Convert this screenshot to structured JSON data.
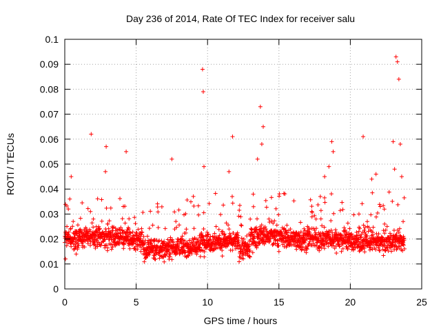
{
  "chart_data": {
    "type": "scatter",
    "title": "Day 236 of 2014, Rate Of TEC Index for receiver salu",
    "xlabel": "GPS time / hours",
    "ylabel": "ROTI / TECUs",
    "xlim": [
      0,
      25
    ],
    "ylim": [
      0,
      0.1
    ],
    "x_ticks": [
      0,
      5,
      10,
      15,
      20,
      25
    ],
    "x_tick_labels": [
      "0",
      "5",
      "10",
      "15",
      "20",
      "25"
    ],
    "y_ticks": [
      0,
      0.01,
      0.02,
      0.03,
      0.04,
      0.05,
      0.06,
      0.07,
      0.08,
      0.09,
      0.1
    ],
    "y_tick_labels": [
      "0",
      "0.01",
      "0.02",
      "0.03",
      "0.04",
      "0.05",
      "0.06",
      "0.07",
      "0.08",
      "0.09",
      "0.1"
    ],
    "grid": true,
    "marker": "+",
    "series": [
      {
        "name": "ROTI",
        "color": "#ff0000",
        "x": [
          0.05,
          0.15,
          0.25,
          0.35,
          0.45,
          0.6,
          0.8,
          1.0,
          1.2,
          1.5,
          1.8,
          1.85,
          2.0,
          2.3,
          2.6,
          2.85,
          2.9,
          3.0,
          3.2,
          3.5,
          3.8,
          4.1,
          4.3,
          4.5,
          4.8,
          5.1,
          5.5,
          5.9,
          6.3,
          6.8,
          7.2,
          7.5,
          7.7,
          7.9,
          8.3,
          8.8,
          9.2,
          9.5,
          9.65,
          9.7,
          9.75,
          10.0,
          10.3,
          10.6,
          10.9,
          11.2,
          11.5,
          11.75,
          11.9,
          12.3,
          12.6,
          12.9,
          13.2,
          13.5,
          13.7,
          13.8,
          13.9,
          14.0,
          14.3,
          14.6,
          15.0,
          15.4,
          15.8,
          16.2,
          16.6,
          17.0,
          17.3,
          17.6,
          17.9,
          18.2,
          18.5,
          18.7,
          18.8,
          19.0,
          19.4,
          19.8,
          20.2,
          20.6,
          20.9,
          21.2,
          21.5,
          21.8,
          22.1,
          22.4,
          22.7,
          23.0,
          23.1,
          23.2,
          23.3,
          23.4,
          23.5,
          23.6,
          23.7
        ],
        "y": [
          0.012,
          0.025,
          0.032,
          0.036,
          0.045,
          0.018,
          0.014,
          0.022,
          0.019,
          0.024,
          0.031,
          0.062,
          0.028,
          0.017,
          0.021,
          0.047,
          0.057,
          0.026,
          0.022,
          0.019,
          0.018,
          0.033,
          0.055,
          0.024,
          0.019,
          0.016,
          0.014,
          0.017,
          0.012,
          0.015,
          0.018,
          0.052,
          0.024,
          0.017,
          0.015,
          0.016,
          0.02,
          0.013,
          0.088,
          0.079,
          0.049,
          0.021,
          0.018,
          0.025,
          0.019,
          0.022,
          0.047,
          0.061,
          0.02,
          0.015,
          0.018,
          0.022,
          0.038,
          0.052,
          0.073,
          0.058,
          0.065,
          0.022,
          0.028,
          0.018,
          0.015,
          0.021,
          0.024,
          0.017,
          0.02,
          0.025,
          0.031,
          0.028,
          0.037,
          0.045,
          0.049,
          0.059,
          0.055,
          0.022,
          0.018,
          0.016,
          0.02,
          0.023,
          0.061,
          0.025,
          0.044,
          0.046,
          0.033,
          0.026,
          0.019,
          0.059,
          0.048,
          0.093,
          0.091,
          0.084,
          0.058,
          0.045,
          0.027
        ]
      }
    ],
    "background_points": 2000
  }
}
